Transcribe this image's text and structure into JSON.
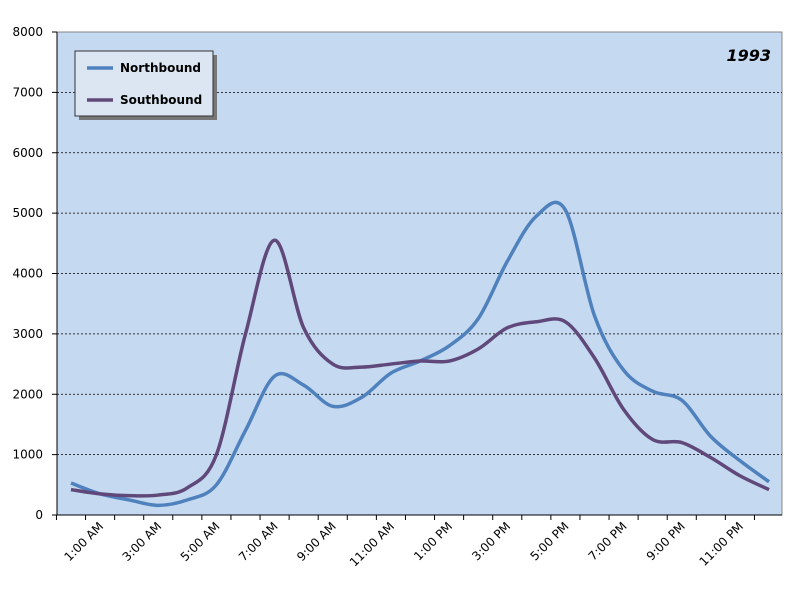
{
  "chart_data": {
    "type": "line",
    "title": "1993",
    "categories": [
      null,
      "1:00 AM",
      null,
      "3:00 AM",
      null,
      "5:00 AM",
      null,
      "7:00 AM",
      null,
      "9:00 AM",
      null,
      "11:00 AM",
      null,
      "1:00 PM",
      null,
      "3:00 PM",
      null,
      "5:00 PM",
      null,
      "7:00 PM",
      null,
      "9:00 PM",
      null,
      "11:00 PM",
      null
    ],
    "series": [
      {
        "name": "Northbound",
        "color": "#4f81bd",
        "values": [
          530,
          350,
          250,
          160,
          250,
          500,
          1400,
          2300,
          2150,
          1800,
          1950,
          2350,
          2550,
          2800,
          3250,
          4200,
          4950,
          5050,
          3300,
          2400,
          2050,
          1900,
          1300,
          900,
          550
        ]
      },
      {
        "name": "Southbound",
        "color": "#60497a",
        "values": [
          420,
          350,
          320,
          330,
          450,
          1000,
          3000,
          4550,
          3100,
          2500,
          2450,
          2500,
          2550,
          2550,
          2750,
          3100,
          3200,
          3200,
          2600,
          1750,
          1250,
          1200,
          950,
          650,
          420
        ]
      }
    ],
    "ylim": [
      0,
      8000
    ],
    "yticks": [
      0,
      1000,
      2000,
      3000,
      4000,
      5000,
      6000,
      7000,
      8000
    ],
    "grid": true,
    "legend": "top-left",
    "plot_background": "#c5d9f1"
  }
}
